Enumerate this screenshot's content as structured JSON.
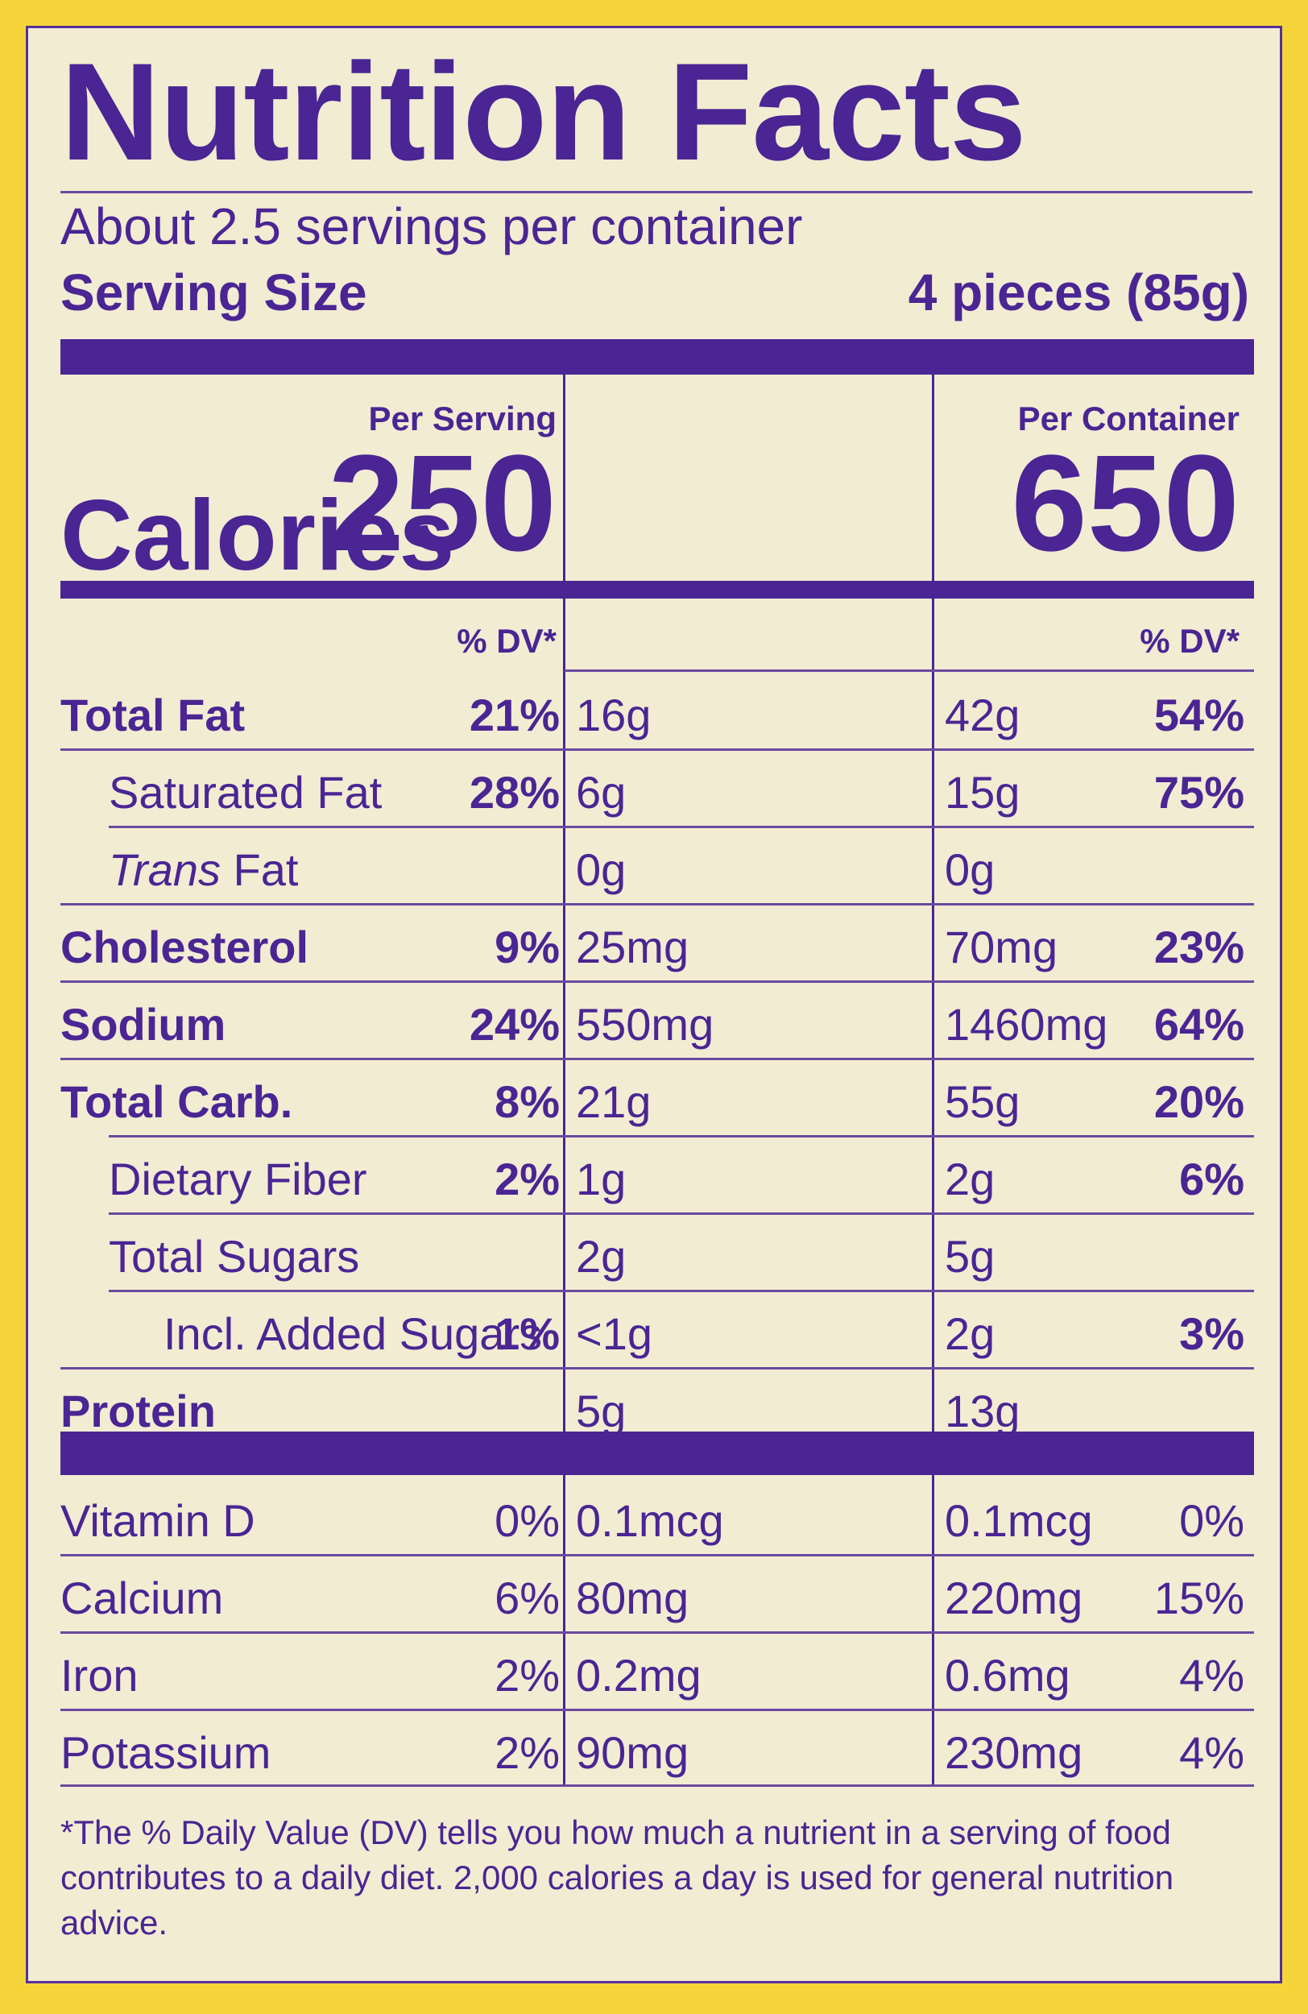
{
  "title": "Nutrition Facts",
  "servings_per_container": "About 2.5 servings per container",
  "serving_size_label": "Serving Size",
  "serving_size_value": "4 pieces (85g)",
  "calories_label": "Calories",
  "per_serving_label": "Per Serving",
  "per_container_label": "Per Container",
  "calories_per_serving": "250",
  "calories_per_container": "650",
  "dv_header": "% DV*",
  "nutrients": [
    {
      "name": "Total Fat",
      "serving_amount": "16g",
      "serving_dv": "21%",
      "container_amount": "42g",
      "container_dv": "54%"
    },
    {
      "name": "Saturated Fat",
      "serving_amount": "6g",
      "serving_dv": "28%",
      "container_amount": "15g",
      "container_dv": "75%"
    },
    {
      "name_italic": "Trans",
      "name_rest": " Fat",
      "serving_amount": "0g",
      "serving_dv": "",
      "container_amount": "0g",
      "container_dv": ""
    },
    {
      "name": "Cholesterol",
      "serving_amount": "25mg",
      "serving_dv": "9%",
      "container_amount": "70mg",
      "container_dv": "23%"
    },
    {
      "name": "Sodium",
      "serving_amount": "550mg",
      "serving_dv": "24%",
      "container_amount": "1460mg",
      "container_dv": "64%"
    },
    {
      "name": "Total Carb.",
      "serving_amount": "21g",
      "serving_dv": "8%",
      "container_amount": "55g",
      "container_dv": "20%"
    },
    {
      "name": "Dietary Fiber",
      "serving_amount": "1g",
      "serving_dv": "2%",
      "container_amount": "2g",
      "container_dv": "6%"
    },
    {
      "name": "Total Sugars",
      "serving_amount": "2g",
      "serving_dv": "",
      "container_amount": "5g",
      "container_dv": ""
    },
    {
      "name": "Incl. Added Sugars",
      "serving_amount": "<1g",
      "serving_dv": "1%",
      "container_amount": "2g",
      "container_dv": "3%"
    },
    {
      "name": "Protein",
      "serving_amount": "5g",
      "serving_dv": "",
      "container_amount": "13g",
      "container_dv": ""
    }
  ],
  "vitamins": [
    {
      "name": "Vitamin D",
      "serving_amount": "0.1mcg",
      "serving_dv": "0%",
      "container_amount": "0.1mcg",
      "container_dv": "0%"
    },
    {
      "name": "Calcium",
      "serving_amount": "80mg",
      "serving_dv": "6%",
      "container_amount": "220mg",
      "container_dv": "15%"
    },
    {
      "name": "Iron",
      "serving_amount": "0.2mg",
      "serving_dv": "2%",
      "container_amount": "0.6mg",
      "container_dv": "4%"
    },
    {
      "name": "Potassium",
      "serving_amount": "90mg",
      "serving_dv": "2%",
      "container_amount": "230mg",
      "container_dv": "4%"
    }
  ],
  "footnote": "*The % Daily Value (DV) tells you how much a nutrient in a serving of food contributes to a daily diet. 2,000 calories a day is used for general nutrition advice.",
  "colors": {
    "text": "#4a2593",
    "background": "#f2ecd3",
    "border": "#f6d53a"
  }
}
